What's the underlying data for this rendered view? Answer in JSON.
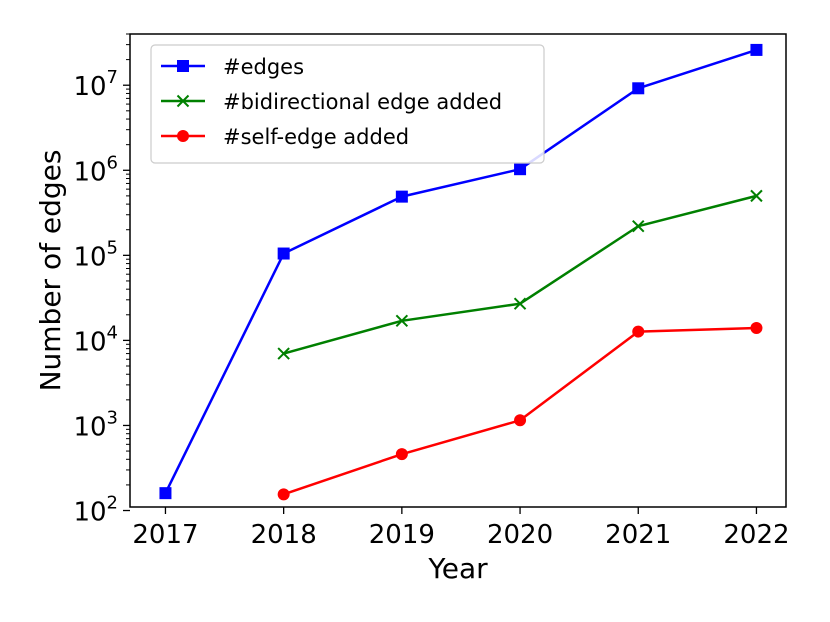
{
  "chart_data": {
    "type": "line",
    "xlabel": "Year",
    "ylabel": "Number of edges",
    "y_scale": "log",
    "ylim": [
      110,
      40000000
    ],
    "xlim": [
      2016.7,
      2022.25
    ],
    "x_ticks": [
      2017,
      2018,
      2019,
      2020,
      2021,
      2022
    ],
    "x_tick_labels": [
      "2017",
      "2018",
      "2019",
      "2020",
      "2021",
      "2022"
    ],
    "y_ticks": [
      100,
      1000,
      10000,
      100000,
      1000000,
      10000000
    ],
    "y_tick_labels": [
      {
        "base": "10",
        "exp": "2"
      },
      {
        "base": "10",
        "exp": "3"
      },
      {
        "base": "10",
        "exp": "4"
      },
      {
        "base": "10",
        "exp": "5"
      },
      {
        "base": "10",
        "exp": "6"
      },
      {
        "base": "10",
        "exp": "7"
      }
    ],
    "grid": false,
    "legend_position": "top-left",
    "series": [
      {
        "name": "#edges",
        "color": "#0000ff",
        "marker": "square",
        "x": [
          2017,
          2018,
          2019,
          2020,
          2021,
          2022
        ],
        "values": [
          160,
          105000,
          490000,
          1030000,
          9200000,
          26000000
        ]
      },
      {
        "name": "#bidirectional edge added",
        "color": "#008000",
        "marker": "x",
        "x": [
          2018,
          2019,
          2020,
          2021,
          2022
        ],
        "values": [
          7000,
          17000,
          27000,
          220000,
          500000
        ]
      },
      {
        "name": "#self-edge added",
        "color": "#ff0000",
        "marker": "circle",
        "x": [
          2018,
          2019,
          2020,
          2021,
          2022
        ],
        "values": [
          155,
          460,
          1150,
          12700,
          14000
        ]
      }
    ]
  }
}
